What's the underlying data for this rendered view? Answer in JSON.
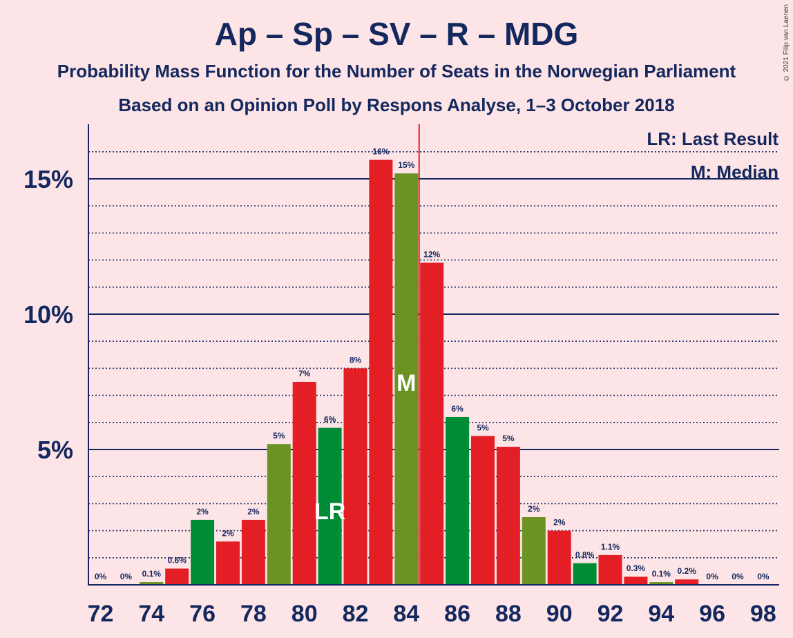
{
  "title": "Ap – Sp – SV – R – MDG",
  "subtitle": "Probability Mass Function for the Number of Seats in the Norwegian Parliament",
  "subtitle2": "Based on an Opinion Poll by Respons Analyse, 1–3 October 2018",
  "copyright": "© 2021 Filip van Laenen",
  "legend": {
    "last_result": "LR: Last Result",
    "median": "M: Median"
  },
  "colors": {
    "red": "#e31e24",
    "green": "#008c35",
    "olive": "#6a9324",
    "navy": "#13285e",
    "background": "#fde4e6"
  },
  "chart_data": {
    "type": "bar",
    "categories": [
      72,
      73,
      74,
      75,
      76,
      77,
      78,
      79,
      80,
      81,
      82,
      83,
      84,
      85,
      86,
      87,
      88,
      89,
      90,
      91,
      92,
      93,
      94,
      95,
      96,
      97,
      98
    ],
    "values": [
      0,
      0,
      0.1,
      0.6,
      2.4,
      1.6,
      2.4,
      5.2,
      7.5,
      5.8,
      8.0,
      15.7,
      15.2,
      11.9,
      6.2,
      5.5,
      5.1,
      2.5,
      2.0,
      0.8,
      1.1,
      0.3,
      0.1,
      0.2,
      0,
      0,
      0
    ],
    "labels": [
      "0%",
      "0%",
      "0.1%",
      "0.6%",
      "2%",
      "2%",
      "2%",
      "5%",
      "7%",
      "6%",
      "8%",
      "16%",
      "15%",
      "12%",
      "6%",
      "5%",
      "5%",
      "2%",
      "2%",
      "0.8%",
      "1.1%",
      "0.3%",
      "0.1%",
      "0.2%",
      "0%",
      "0%",
      "0%"
    ],
    "bar_colors": [
      "green",
      "red",
      "olive",
      "red",
      "green",
      "red",
      "red",
      "olive",
      "red",
      "green",
      "red",
      "red",
      "olive",
      "red",
      "green",
      "red",
      "red",
      "olive",
      "red",
      "green",
      "red",
      "red",
      "olive",
      "red",
      "green",
      "red",
      "red"
    ],
    "x_tick_labels": [
      "72",
      "74",
      "76",
      "78",
      "80",
      "82",
      "84",
      "86",
      "88",
      "90",
      "92",
      "94",
      "96",
      "98"
    ],
    "y_ticks": [
      5,
      10,
      15
    ],
    "y_tick_labels": [
      "5%",
      "10%",
      "15%"
    ],
    "ylim": [
      0,
      17
    ],
    "last_result": 81,
    "last_result_label": "LR",
    "median": 84,
    "median_label": "M",
    "majority_line": 84.5
  }
}
